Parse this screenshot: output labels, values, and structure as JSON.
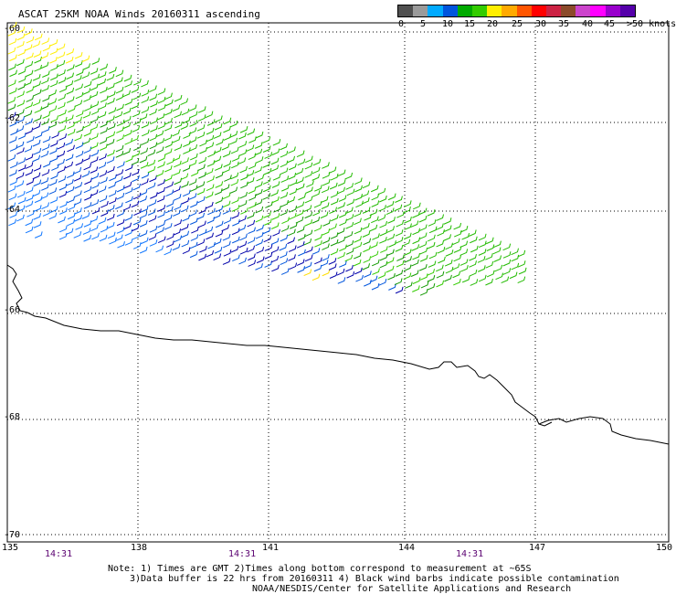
{
  "map": {
    "title": "ASCAT 25KM NOAA Winds 20160311 ascending",
    "lat_labels": [
      "-60",
      "-62",
      "-64",
      "-66",
      "-68",
      "-70"
    ],
    "lon_labels": [
      "135",
      "138",
      "141",
      "144",
      "147",
      "150"
    ],
    "time_labels": [
      "14:31",
      "14:31",
      "14:31"
    ],
    "colors": {
      "coastline": "#000000",
      "gridline": "#000000",
      "time_label": "#5a0070"
    }
  },
  "legend": {
    "labels": [
      "0",
      "5",
      "10",
      "15",
      "20",
      "25",
      "30",
      "35",
      "40",
      "45",
      ">50 knots"
    ],
    "colors": [
      "#505050",
      "#9a9a9a",
      "#00aaff",
      "#0055dd",
      "#00aa00",
      "#33cc00",
      "#ffee00",
      "#ffaa00",
      "#ff5500",
      "#ff0000",
      "#cc2244",
      "#8b4a2a",
      "#cc44cc",
      "#ff00ff",
      "#9900cc",
      "#5500aa"
    ]
  },
  "notes": {
    "line1": "Note: 1) Times are GMT 2)Times along bottom correspond to measurement at ~65S",
    "line2": "3)Data buffer is 22 hrs from 20160311 4) Black wind barbs indicate possible contamination",
    "line3": "NOAA/NESDIS/Center for Satellite Applications and Research"
  }
}
